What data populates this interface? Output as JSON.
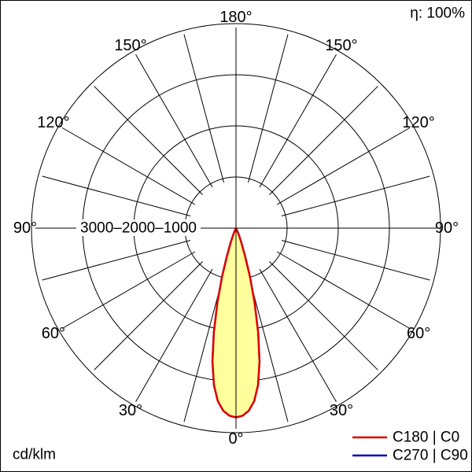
{
  "meta": {
    "efficiency_label": "η: 100%",
    "unit_label": "cd/klm"
  },
  "chart_data": {
    "type": "polar",
    "subtype": "photometric-intensity-distribution",
    "units": "cd/klm",
    "efficiency": "η: 100%",
    "angle_tick_deg": 15,
    "angle_labels_deg": [
      0,
      30,
      60,
      90,
      120,
      150,
      180
    ],
    "angle_label_suffix": "°",
    "radial_circles_cd": [
      1000,
      2000,
      3000,
      4000
    ],
    "radial_axis_label": "3000–2000–1000",
    "radial_max_cd": 4000,
    "legend_position": "bottom-right",
    "series": [
      {
        "name": "C180 | C0",
        "color": "#dd0000",
        "fill": "#ffff9e",
        "symmetric": true,
        "points_deg_cd": [
          [
            0,
            3700
          ],
          [
            2,
            3670
          ],
          [
            4,
            3580
          ],
          [
            6,
            3400
          ],
          [
            8,
            3100
          ],
          [
            10,
            2650
          ],
          [
            12,
            2080
          ],
          [
            14,
            1500
          ],
          [
            16,
            980
          ],
          [
            18,
            580
          ],
          [
            20,
            310
          ],
          [
            22,
            150
          ],
          [
            24,
            60
          ],
          [
            26,
            20
          ],
          [
            28,
            5
          ],
          [
            30,
            0
          ]
        ]
      },
      {
        "name": "C270 | C90",
        "color": "#0000c0",
        "fill": "none",
        "symmetric": true,
        "points_deg_cd": [
          [
            0,
            3700
          ],
          [
            2,
            3670
          ],
          [
            4,
            3580
          ],
          [
            6,
            3400
          ],
          [
            8,
            3100
          ],
          [
            10,
            2650
          ],
          [
            12,
            2080
          ],
          [
            14,
            1500
          ],
          [
            16,
            980
          ],
          [
            18,
            580
          ],
          [
            20,
            310
          ],
          [
            22,
            150
          ],
          [
            24,
            60
          ],
          [
            26,
            20
          ],
          [
            28,
            5
          ],
          [
            30,
            0
          ]
        ]
      }
    ]
  }
}
